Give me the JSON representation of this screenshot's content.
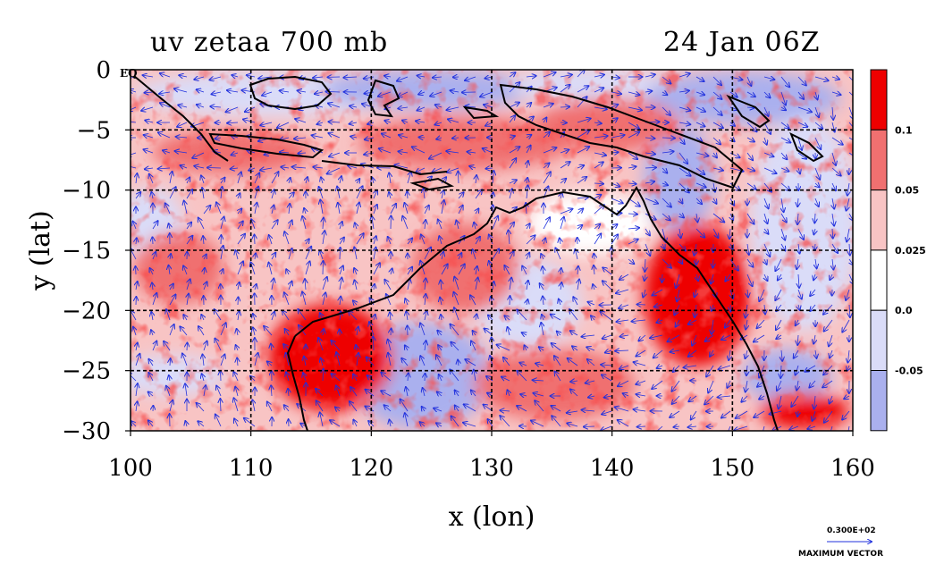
{
  "title": {
    "left": "uv zetaa 700 mb",
    "right": "24 Jan 06Z"
  },
  "chart_data": {
    "type": "heatmap",
    "title": "uv zetaa 700 mb",
    "valid_time": "24 Jan 06Z",
    "xlabel": "x (lon)",
    "ylabel": "y (lat)",
    "xlim": [
      100,
      160
    ],
    "ylim": [
      -30,
      0
    ],
    "xticks": [
      100,
      110,
      120,
      130,
      140,
      150,
      160
    ],
    "yticks": [
      0,
      -5,
      -10,
      -15,
      -20,
      -25,
      -30
    ],
    "xtick_labels": [
      "100",
      "110",
      "120",
      "130",
      "140",
      "150",
      "160"
    ],
    "ytick_labels": [
      "0",
      "−5",
      "−10",
      "−15",
      "−20",
      "−25",
      "−30"
    ],
    "equator_label": "EQ",
    "gridlines": [
      {
        "axis": "x",
        "value": 110
      },
      {
        "axis": "x",
        "value": 120
      },
      {
        "axis": "x",
        "value": 130
      },
      {
        "axis": "x",
        "value": 140
      },
      {
        "axis": "x",
        "value": 150
      },
      {
        "axis": "y",
        "value": -5
      },
      {
        "axis": "y",
        "value": -10
      },
      {
        "axis": "y",
        "value": -15
      },
      {
        "axis": "y",
        "value": -20
      },
      {
        "axis": "y",
        "value": -25
      }
    ],
    "colorbar": {
      "bins": [
        {
          "color": "#ee0000",
          "label": "0.1"
        },
        {
          "color": "#f07070",
          "label": "0.05"
        },
        {
          "color": "#f8c4c4",
          "label": "0.025"
        },
        {
          "color": "#ffffff",
          "label": "0.0"
        },
        {
          "color": "#dadcf8",
          "label": "-0.05"
        },
        {
          "color": "#aab0ee",
          "label": ""
        }
      ]
    },
    "vector_legend": {
      "value": "0.300E+02",
      "label": "MAXIMUM VECTOR"
    },
    "field_description_points": [
      {
        "lon": 137,
        "lat": -12,
        "value": 0.0
      },
      {
        "lon": 148,
        "lat": -20,
        "value": 0.1
      },
      {
        "lon": 117,
        "lat": -24,
        "value": 0.1
      },
      {
        "lon": 128,
        "lat": -26,
        "value": -0.05
      },
      {
        "lon": 157,
        "lat": -17,
        "value": -0.05
      },
      {
        "lon": 115,
        "lat": -1,
        "value": -0.05
      },
      {
        "lon": 135,
        "lat": -5,
        "value": 0.05
      },
      {
        "lon": 105,
        "lat": -15,
        "value": 0.05
      }
    ],
    "colors": {
      "vector": "#2030dd",
      "coast": "#000000"
    }
  }
}
